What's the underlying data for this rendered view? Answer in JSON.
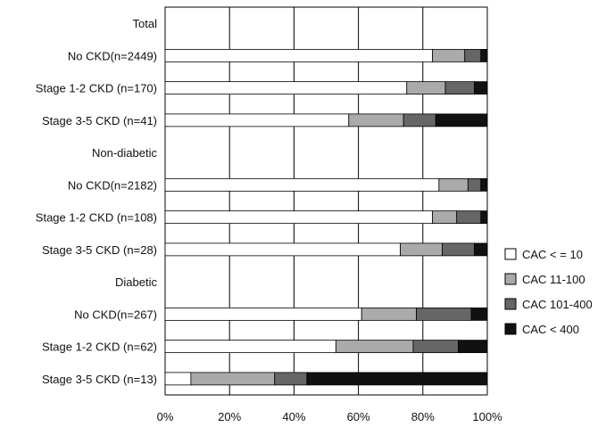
{
  "chart_data": {
    "type": "bar",
    "stacked": true,
    "orientation": "horizontal",
    "xlim": [
      0,
      100
    ],
    "xtick_labels": [
      "0%",
      "20%",
      "40%",
      "60%",
      "80%",
      "100%"
    ],
    "grid": true,
    "legend_position": "right",
    "rows": [
      {
        "label": "Total",
        "kind": "header"
      },
      {
        "label": "No CKD(n=2449)",
        "kind": "bar",
        "values": [
          83,
          10,
          5,
          2
        ]
      },
      {
        "label": "Stage 1-2 CKD (n=170)",
        "kind": "bar",
        "values": [
          75,
          12,
          9,
          4
        ]
      },
      {
        "label": "Stage 3-5 CKD (n=41)",
        "kind": "bar",
        "values": [
          57,
          17,
          10,
          16
        ]
      },
      {
        "label": "Non-diabetic",
        "kind": "header"
      },
      {
        "label": "No CKD(n=2182)",
        "kind": "bar",
        "values": [
          85,
          9,
          4,
          2
        ]
      },
      {
        "label": "Stage 1-2 CKD (n=108)",
        "kind": "bar",
        "values": [
          83,
          7.5,
          7.5,
          2
        ]
      },
      {
        "label": "Stage 3-5 CKD (n=28)",
        "kind": "bar",
        "values": [
          73,
          13,
          10,
          4
        ]
      },
      {
        "label": "Diabetic",
        "kind": "header"
      },
      {
        "label": "No CKD(n=267)",
        "kind": "bar",
        "values": [
          61,
          17,
          17,
          5
        ]
      },
      {
        "label": "Stage 1-2 CKD (n=62)",
        "kind": "bar",
        "values": [
          53,
          24,
          14,
          9
        ]
      },
      {
        "label": "Stage 3-5 CKD (n=13)",
        "kind": "bar",
        "values": [
          8,
          26,
          10,
          56
        ]
      }
    ],
    "series": [
      {
        "name": "CAC < = 10",
        "color": "#ffffff"
      },
      {
        "name": "CAC 11-100",
        "color": "#aaaaaa"
      },
      {
        "name": "CAC 101-400",
        "color": "#666666"
      },
      {
        "name": "CAC < 400",
        "color": "#111111"
      }
    ]
  }
}
